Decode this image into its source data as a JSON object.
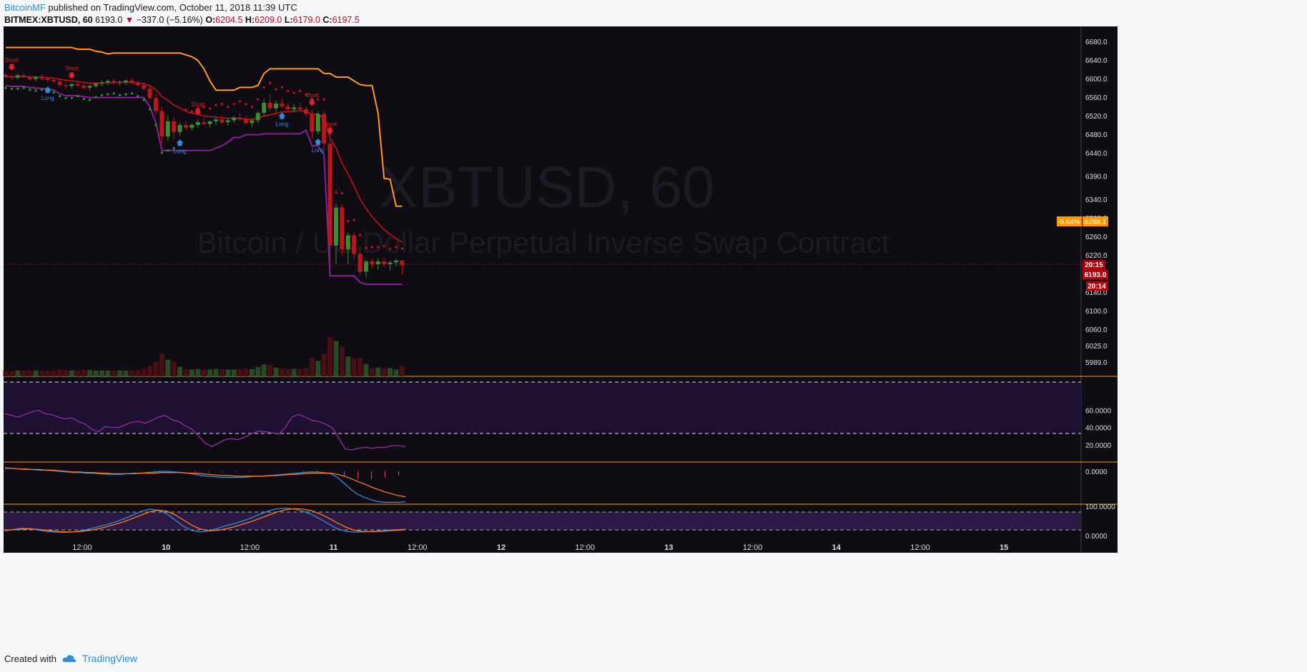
{
  "header": {
    "author": "BitcoinMF",
    "published_text": " published on TradingView.com, October 11, 2018 11:39 UTC",
    "symbol": "BITMEX:XBTUSD, 60",
    "last": "6193.0",
    "change": "−337.0 (−5.16%)",
    "o_label": "O:",
    "o_value": "6204.5",
    "h_label": "H:",
    "h_value": "6209.0",
    "l_label": "L:",
    "l_value": "6179.0",
    "c_label": "C:",
    "c_value": "6197.5"
  },
  "watermark": {
    "symbol": "XBTUSD, 60",
    "description": "Bitcoin / US Dollar Perpetual Inverse Swap Contract"
  },
  "footer": {
    "created_with": "Created with",
    "brand": "TradingView"
  },
  "colors": {
    "background": "#0f0c14",
    "up": "#3d8c2e",
    "down": "#c0141c",
    "orange": "#ff9a1f",
    "purple": "#8b1e9c",
    "blue": "#2e8fd8",
    "separator": "#ff9800"
  },
  "price_labels": {
    "change_pct": "-5.64%",
    "orange_price": "6288.1",
    "time1": "20:15",
    "current_price": "6193.0",
    "time2": "20:14"
  },
  "chart_data": [
    {
      "type": "candlestick",
      "title": "BITMEX:XBTUSD, 60",
      "price_axis_ticks": [
        "6680.0",
        "6640.0",
        "6600.0",
        "6560.0",
        "6520.0",
        "6480.0",
        "6440.0",
        "6390.0",
        "6340.0",
        "6300.0",
        "6260.0",
        "6220.0",
        "6140.0",
        "6100.0",
        "6060.0",
        "6025.0",
        "5989.0"
      ],
      "x_axis_ticks": [
        "12:00",
        "10",
        "12:00",
        "11",
        "12:00",
        "12",
        "12:00",
        "13",
        "12:00",
        "14",
        "12:00",
        "15"
      ],
      "candles": [
        [
          6608,
          6612,
          6600,
          6604
        ],
        [
          6604,
          6608,
          6598,
          6602
        ],
        [
          6602,
          6610,
          6598,
          6607
        ],
        [
          6607,
          6612,
          6600,
          6604
        ],
        [
          6604,
          6608,
          6596,
          6599
        ],
        [
          6599,
          6606,
          6594,
          6603
        ],
        [
          6603,
          6608,
          6596,
          6600
        ],
        [
          6600,
          6604,
          6592,
          6597
        ],
        [
          6597,
          6602,
          6590,
          6594
        ],
        [
          6594,
          6598,
          6582,
          6586
        ],
        [
          6586,
          6592,
          6578,
          6584
        ],
        [
          6584,
          6590,
          6578,
          6588
        ],
        [
          6588,
          6594,
          6582,
          6585
        ],
        [
          6585,
          6590,
          6576,
          6580
        ],
        [
          6580,
          6588,
          6574,
          6584
        ],
        [
          6584,
          6592,
          6580,
          6589
        ],
        [
          6589,
          6596,
          6584,
          6592
        ],
        [
          6592,
          6598,
          6586,
          6595
        ],
        [
          6595,
          6600,
          6588,
          6591
        ],
        [
          6591,
          6596,
          6584,
          6593
        ],
        [
          6593,
          6598,
          6586,
          6596
        ],
        [
          6596,
          6600,
          6588,
          6590
        ],
        [
          6590,
          6596,
          6582,
          6586
        ],
        [
          6586,
          6592,
          6574,
          6578
        ],
        [
          6578,
          6584,
          6554,
          6558
        ],
        [
          6558,
          6566,
          6520,
          6530
        ],
        [
          6530,
          6540,
          6460,
          6475
        ],
        [
          6475,
          6520,
          6465,
          6508
        ],
        [
          6508,
          6518,
          6470,
          6485
        ],
        [
          6485,
          6505,
          6478,
          6500
        ],
        [
          6500,
          6508,
          6490,
          6494
        ],
        [
          6494,
          6504,
          6488,
          6500
        ],
        [
          6500,
          6512,
          6494,
          6506
        ],
        [
          6506,
          6514,
          6498,
          6502
        ],
        [
          6502,
          6510,
          6494,
          6508
        ],
        [
          6508,
          6518,
          6500,
          6512
        ],
        [
          6512,
          6520,
          6504,
          6506
        ],
        [
          6506,
          6514,
          6498,
          6510
        ],
        [
          6510,
          6520,
          6504,
          6516
        ],
        [
          6516,
          6526,
          6508,
          6512
        ],
        [
          6512,
          6520,
          6500,
          6504
        ],
        [
          6504,
          6514,
          6496,
          6510
        ],
        [
          6510,
          6530,
          6504,
          6526
        ],
        [
          6526,
          6556,
          6520,
          6548
        ],
        [
          6548,
          6566,
          6530,
          6536
        ],
        [
          6536,
          6552,
          6528,
          6546
        ],
        [
          6546,
          6556,
          6536,
          6540
        ],
        [
          6540,
          6548,
          6530,
          6534
        ],
        [
          6534,
          6544,
          6526,
          6538
        ],
        [
          6538,
          6548,
          6530,
          6534
        ],
        [
          6534,
          6540,
          6518,
          6524
        ],
        [
          6524,
          6532,
          6470,
          6486
        ],
        [
          6486,
          6530,
          6480,
          6524
        ],
        [
          6524,
          6530,
          6450,
          6460
        ],
        [
          6460,
          6470,
          6190,
          6240
        ],
        [
          6240,
          6330,
          6200,
          6322
        ],
        [
          6322,
          6328,
          6220,
          6232
        ],
        [
          6232,
          6268,
          6200,
          6262
        ],
        [
          6262,
          6270,
          6210,
          6222
        ],
        [
          6222,
          6238,
          6176,
          6184
        ],
        [
          6184,
          6210,
          6172,
          6206
        ],
        [
          6206,
          6212,
          6190,
          6200
        ],
        [
          6200,
          6212,
          6188,
          6206
        ],
        [
          6206,
          6214,
          6194,
          6200
        ],
        [
          6200,
          6208,
          6186,
          6204
        ],
        [
          6204,
          6212,
          6196,
          6208
        ],
        [
          6208,
          6209,
          6179,
          6198
        ]
      ],
      "signals": [
        {
          "candle": 1,
          "label": "Short"
        },
        {
          "candle": 7,
          "label": "Long"
        },
        {
          "candle": 11,
          "label": "Short"
        },
        {
          "candle": 29,
          "label": "Long"
        },
        {
          "candle": 32,
          "label": "Short"
        },
        {
          "candle": 46,
          "label": "Long"
        },
        {
          "candle": 51,
          "label": "Short"
        },
        {
          "candle": 52,
          "label": "Long"
        },
        {
          "candle": 54,
          "label": "Short"
        }
      ]
    },
    {
      "type": "line",
      "name": "RSI",
      "ticks": [
        "60.0000",
        "40.0000",
        "20.0000"
      ],
      "levels": [
        70,
        30
      ],
      "values": [
        56,
        54,
        52,
        55,
        58,
        60,
        56,
        55,
        52,
        50,
        51,
        47,
        44,
        38,
        35,
        41,
        40,
        40,
        43,
        46,
        47,
        45,
        48,
        52,
        54,
        49,
        47,
        42,
        38,
        30,
        22,
        18,
        22,
        26,
        27,
        26,
        29,
        33,
        36,
        35,
        34,
        32,
        40,
        52,
        55,
        52,
        48,
        47,
        44,
        40,
        28,
        15,
        14,
        16,
        17,
        16,
        17,
        17,
        19,
        19,
        18
      ]
    },
    {
      "type": "line",
      "name": "MACD",
      "ticks": [
        "0.0000"
      ],
      "ylim": [
        -60,
        10
      ],
      "macd": [
        6,
        5,
        4,
        3,
        3,
        2,
        2,
        1,
        0,
        -1,
        -2,
        -2,
        -3,
        -3,
        -4,
        -5,
        -5,
        -5,
        -4,
        -3,
        -3,
        -2,
        -1,
        0,
        0,
        -1,
        -2,
        -3,
        -5,
        -7,
        -8,
        -9,
        -10,
        -10,
        -10,
        -10,
        -9,
        -8,
        -8,
        -7,
        -6,
        -5,
        -4,
        -3,
        -2,
        -1,
        -1,
        -2,
        -4,
        -10,
        -20,
        -30,
        -38,
        -43,
        -47,
        -50,
        -51,
        -51,
        -51,
        -50
      ],
      "signal": [
        5,
        5,
        4,
        4,
        3,
        3,
        2,
        2,
        1,
        0,
        -1,
        -1,
        -2,
        -2,
        -3,
        -3,
        -4,
        -4,
        -4,
        -4,
        -3,
        -3,
        -3,
        -2,
        -2,
        -2,
        -2,
        -3,
        -3,
        -4,
        -5,
        -6,
        -7,
        -7,
        -8,
        -8,
        -8,
        -8,
        -8,
        -7,
        -7,
        -6,
        -5,
        -5,
        -4,
        -3,
        -3,
        -3,
        -3,
        -5,
        -8,
        -12,
        -17,
        -21,
        -26,
        -30,
        -34,
        -37,
        -40,
        -42
      ]
    },
    {
      "type": "line",
      "name": "Stoch RSI",
      "ticks": [
        "100.0000",
        "0.0000"
      ],
      "levels": [
        80,
        20
      ],
      "k": [
        10,
        15,
        20,
        18,
        12,
        8,
        5,
        4,
        6,
        10,
        18,
        26,
        34,
        44,
        56,
        70,
        84,
        92,
        88,
        74,
        50,
        26,
        10,
        6,
        10,
        20,
        30,
        38,
        48,
        60,
        74,
        86,
        94,
        96,
        92,
        84,
        72,
        55,
        36,
        18,
        8,
        5,
        6,
        8,
        10,
        12,
        14,
        16
      ],
      "d": [
        12,
        14,
        16,
        17,
        15,
        12,
        8,
        6,
        6,
        8,
        12,
        18,
        26,
        35,
        45,
        57,
        70,
        82,
        88,
        84,
        70,
        50,
        30,
        16,
        10,
        12,
        18,
        26,
        36,
        46,
        58,
        70,
        82,
        90,
        94,
        92,
        86,
        74,
        58,
        40,
        24,
        12,
        8,
        7,
        8,
        10,
        12,
        14
      ]
    }
  ]
}
